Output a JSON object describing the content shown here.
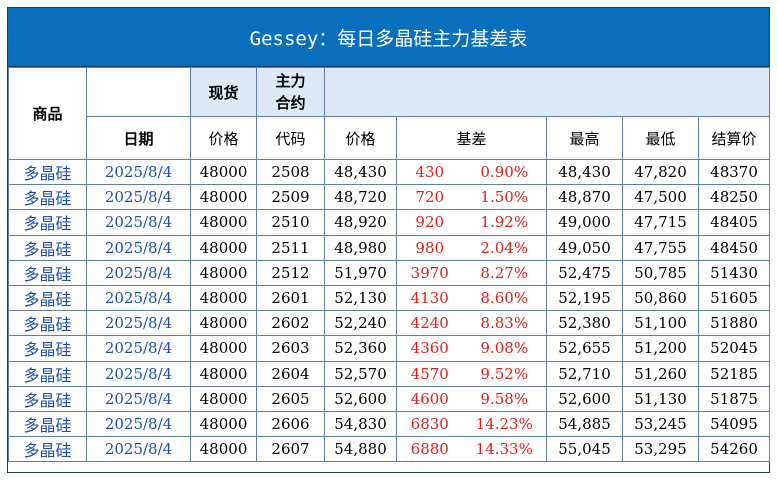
{
  "title": "Gessey：每日多晶硅主力基差表",
  "header": {
    "product": "商品",
    "spot": "现货",
    "main_contract": "主力\n合约",
    "date": "日期",
    "spot_price": "价格",
    "code": "代码",
    "price": "价格",
    "basis": "基差",
    "high": "最高",
    "low": "最低",
    "settle": "结算价"
  },
  "rows": [
    {
      "product": "多晶硅",
      "date": "2025/8/4",
      "spot": "48000",
      "code": "2508",
      "price": "48,430",
      "basis": "430",
      "basis_pct": "0.90%",
      "high": "48,430",
      "low": "47,820",
      "settle": "48370"
    },
    {
      "product": "多晶硅",
      "date": "2025/8/4",
      "spot": "48000",
      "code": "2509",
      "price": "48,720",
      "basis": "720",
      "basis_pct": "1.50%",
      "high": "48,870",
      "low": "47,500",
      "settle": "48250"
    },
    {
      "product": "多晶硅",
      "date": "2025/8/4",
      "spot": "48000",
      "code": "2510",
      "price": "48,920",
      "basis": "920",
      "basis_pct": "1.92%",
      "high": "49,000",
      "low": "47,715",
      "settle": "48405"
    },
    {
      "product": "多晶硅",
      "date": "2025/8/4",
      "spot": "48000",
      "code": "2511",
      "price": "48,980",
      "basis": "980",
      "basis_pct": "2.04%",
      "high": "49,050",
      "low": "47,755",
      "settle": "48450"
    },
    {
      "product": "多晶硅",
      "date": "2025/8/4",
      "spot": "48000",
      "code": "2512",
      "price": "51,970",
      "basis": "3970",
      "basis_pct": "8.27%",
      "high": "52,475",
      "low": "50,785",
      "settle": "51430"
    },
    {
      "product": "多晶硅",
      "date": "2025/8/4",
      "spot": "48000",
      "code": "2601",
      "price": "52,130",
      "basis": "4130",
      "basis_pct": "8.60%",
      "high": "52,195",
      "low": "50,860",
      "settle": "51605"
    },
    {
      "product": "多晶硅",
      "date": "2025/8/4",
      "spot": "48000",
      "code": "2602",
      "price": "52,240",
      "basis": "4240",
      "basis_pct": "8.83%",
      "high": "52,380",
      "low": "51,100",
      "settle": "51880"
    },
    {
      "product": "多晶硅",
      "date": "2025/8/4",
      "spot": "48000",
      "code": "2603",
      "price": "52,360",
      "basis": "4360",
      "basis_pct": "9.08%",
      "high": "52,655",
      "low": "51,200",
      "settle": "52045"
    },
    {
      "product": "多晶硅",
      "date": "2025/8/4",
      "spot": "48000",
      "code": "2604",
      "price": "52,570",
      "basis": "4570",
      "basis_pct": "9.52%",
      "high": "52,710",
      "low": "51,260",
      "settle": "52185"
    },
    {
      "product": "多晶硅",
      "date": "2025/8/4",
      "spot": "48000",
      "code": "2605",
      "price": "52,600",
      "basis": "4600",
      "basis_pct": "9.58%",
      "high": "52,600",
      "low": "51,130",
      "settle": "51875"
    },
    {
      "product": "多晶硅",
      "date": "2025/8/4",
      "spot": "48000",
      "code": "2606",
      "price": "54,830",
      "basis": "6830",
      "basis_pct": "14.23%",
      "high": "54,885",
      "low": "53,245",
      "settle": "54095"
    },
    {
      "product": "多晶硅",
      "date": "2025/8/4",
      "spot": "48000",
      "code": "2607",
      "price": "54,880",
      "basis": "6880",
      "basis_pct": "14.33%",
      "high": "55,045",
      "low": "53,295",
      "settle": "54260"
    }
  ],
  "colors": {
    "title_bg": "#0a6fbd",
    "header_bg": "#dde9f7",
    "product_text": "#1f4fae",
    "basis_text": "#e0201c"
  }
}
